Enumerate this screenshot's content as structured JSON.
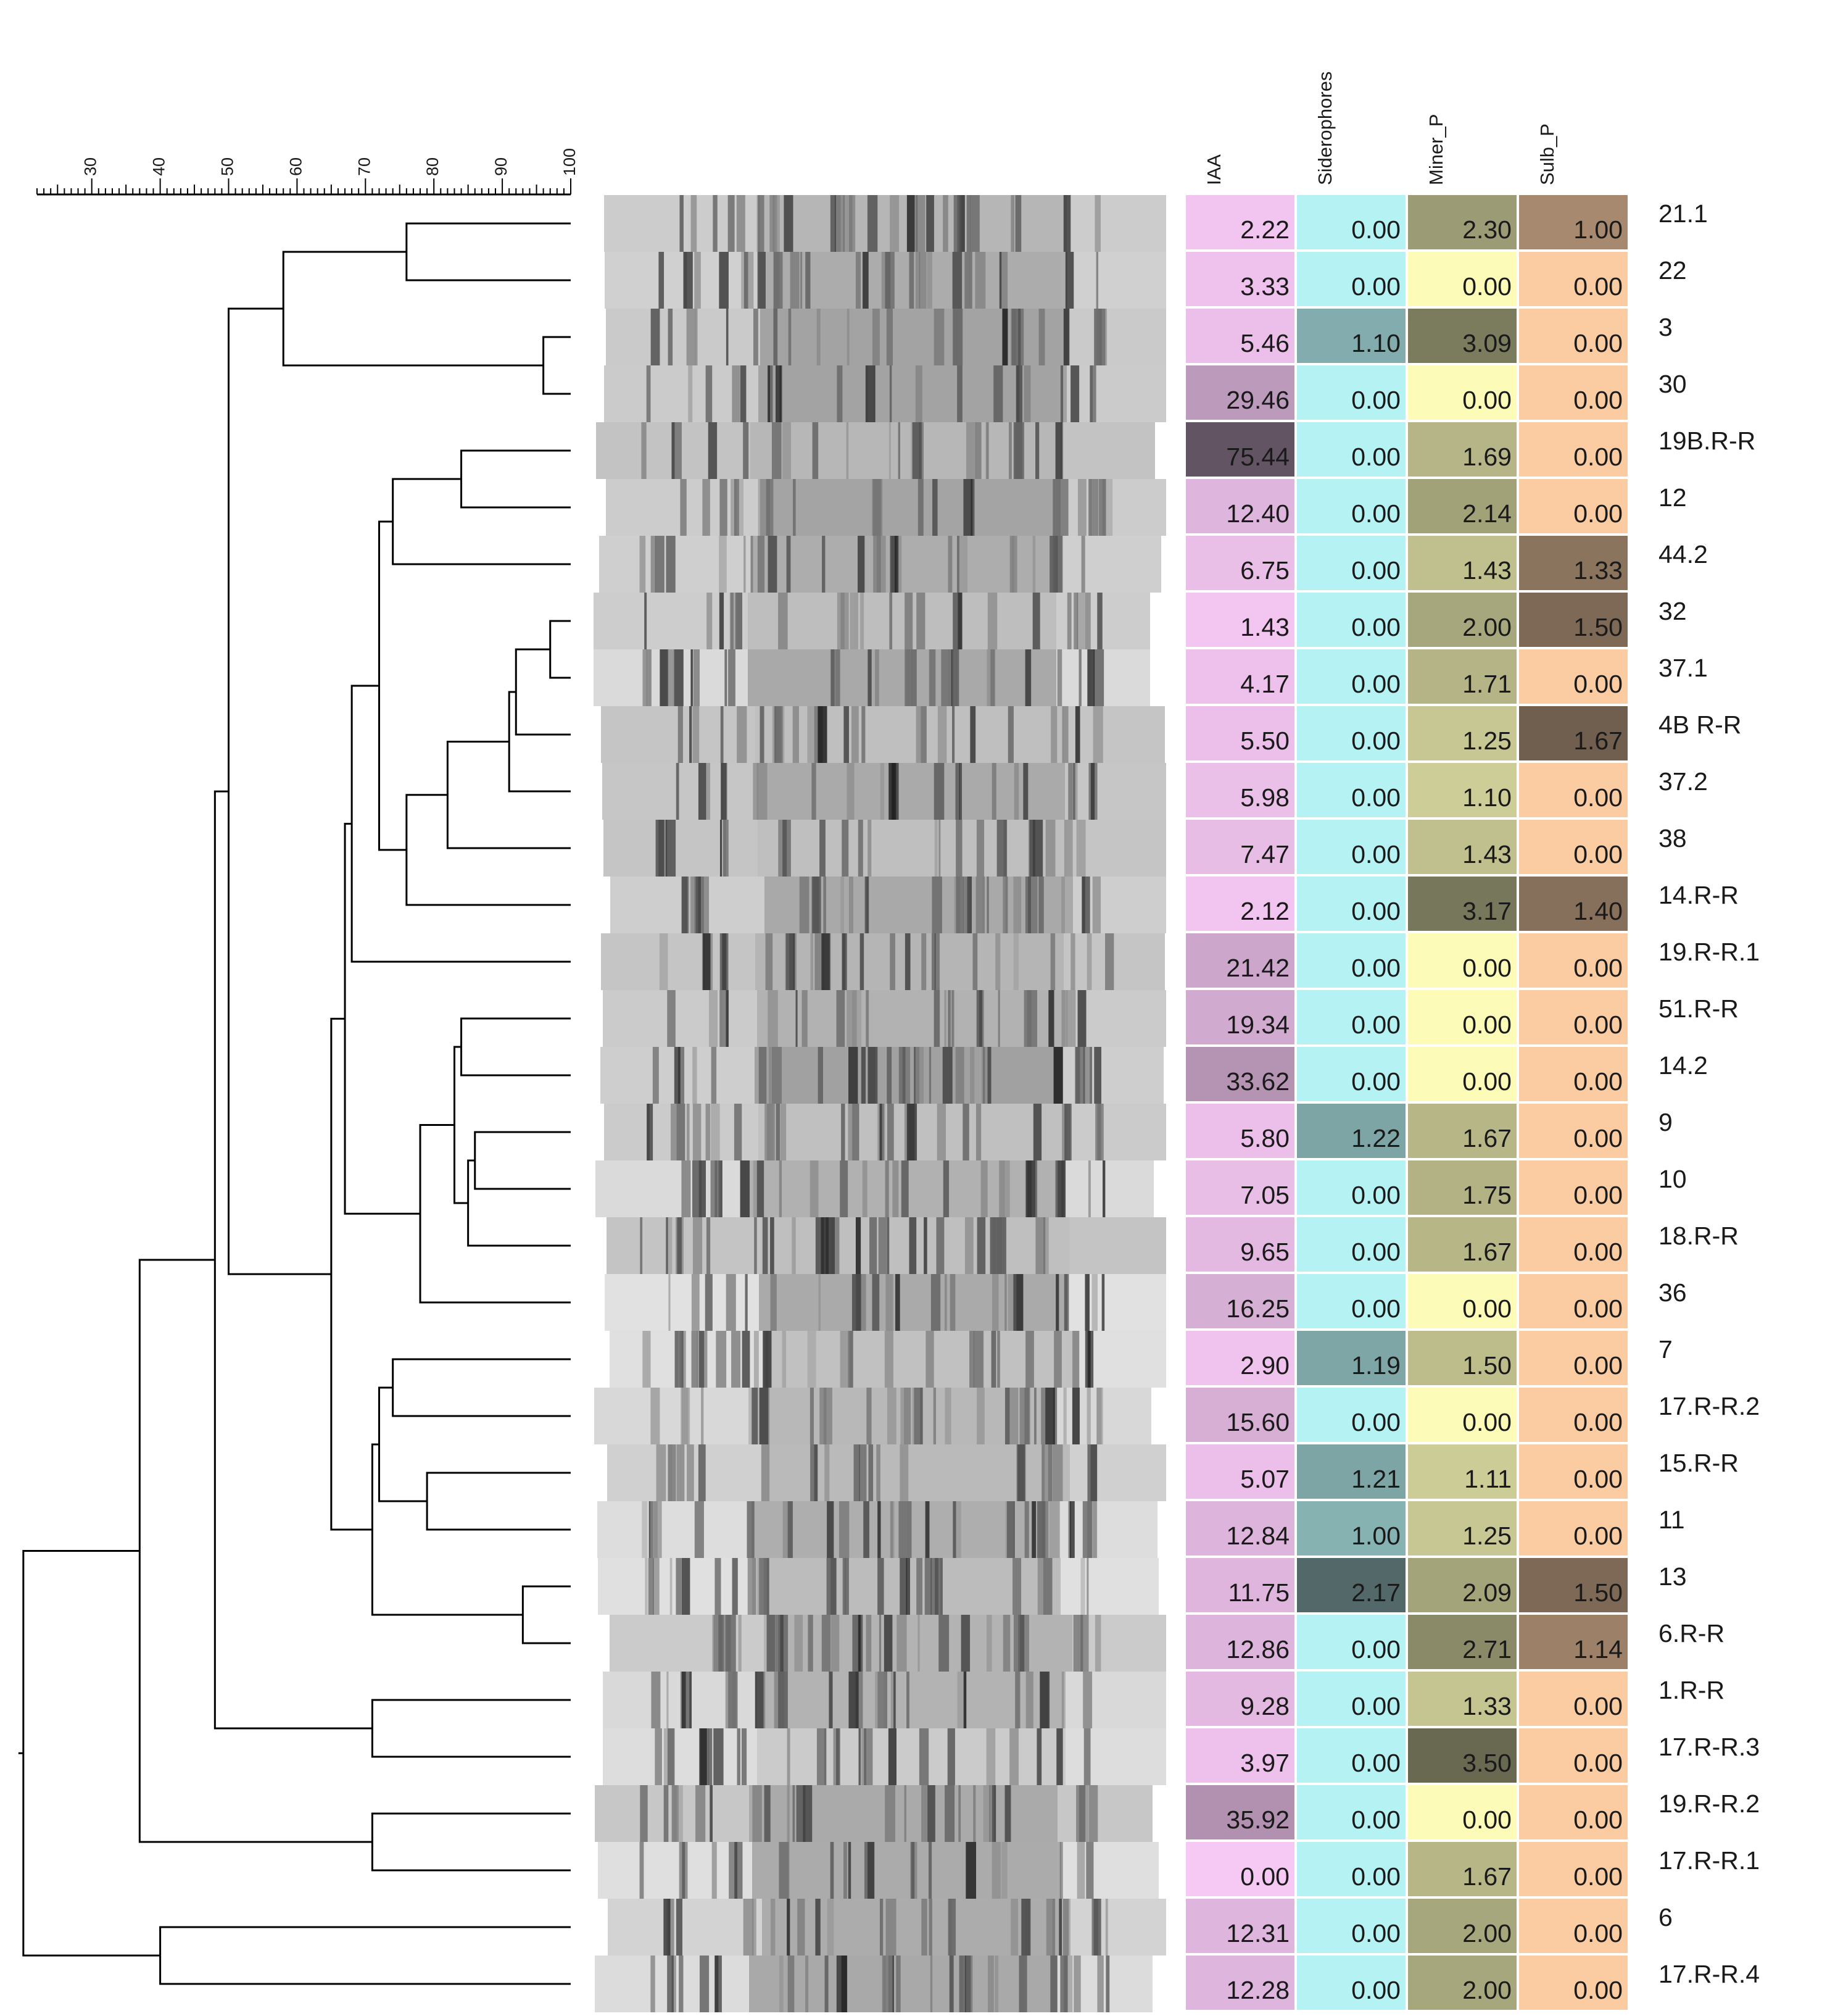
{
  "scale": {
    "ticks": [
      "30",
      "40",
      "50",
      "60",
      "70",
      "80",
      "90",
      "100"
    ],
    "min": 22,
    "max": 100
  },
  "column_headers": [
    "IAA",
    "Siderophores",
    "Miner_P",
    "Sulb_P"
  ],
  "colors": {
    "IAA": "#f6c8f4",
    "Siderophores": "#b4f2f3",
    "Miner_P": "#fcfcb8",
    "Sulb_P": "#fbcca1",
    "shade": "#1e1e1e",
    "line": "#000000",
    "text": "#1a1a1a"
  },
  "shade_max": {
    "IAA": 80,
    "Siderophores": 2.4,
    "Miner_P": 3.8,
    "Sulb_P": 1.9
  },
  "strains": [
    {
      "label": "21.1",
      "values": [
        "2.22",
        "0.00",
        "2.30",
        "1.00"
      ]
    },
    {
      "label": "22",
      "values": [
        "3.33",
        "0.00",
        "0.00",
        "0.00"
      ]
    },
    {
      "label": "3",
      "values": [
        "5.46",
        "1.10",
        "3.09",
        "0.00"
      ]
    },
    {
      "label": "30",
      "values": [
        "29.46",
        "0.00",
        "0.00",
        "0.00"
      ]
    },
    {
      "label": "19B.R-R",
      "values": [
        "75.44",
        "0.00",
        "1.69",
        "0.00"
      ]
    },
    {
      "label": "12",
      "values": [
        "12.40",
        "0.00",
        "2.14",
        "0.00"
      ]
    },
    {
      "label": "44.2",
      "values": [
        "6.75",
        "0.00",
        "1.43",
        "1.33"
      ]
    },
    {
      "label": "32",
      "values": [
        "1.43",
        "0.00",
        "2.00",
        "1.50"
      ]
    },
    {
      "label": "37.1",
      "values": [
        "4.17",
        "0.00",
        "1.71",
        "0.00"
      ]
    },
    {
      "label": "4B R-R",
      "values": [
        "5.50",
        "0.00",
        "1.25",
        "1.67"
      ]
    },
    {
      "label": "37.2",
      "values": [
        "5.98",
        "0.00",
        "1.10",
        "0.00"
      ]
    },
    {
      "label": "38",
      "values": [
        "7.47",
        "0.00",
        "1.43",
        "0.00"
      ]
    },
    {
      "label": "14.R-R",
      "values": [
        "2.12",
        "0.00",
        "3.17",
        "1.40"
      ]
    },
    {
      "label": "19.R-R.1",
      "values": [
        "21.42",
        "0.00",
        "0.00",
        "0.00"
      ]
    },
    {
      "label": "51.R-R",
      "values": [
        "19.34",
        "0.00",
        "0.00",
        "0.00"
      ]
    },
    {
      "label": "14.2",
      "values": [
        "33.62",
        "0.00",
        "0.00",
        "0.00"
      ]
    },
    {
      "label": "9",
      "values": [
        "5.80",
        "1.22",
        "1.67",
        "0.00"
      ]
    },
    {
      "label": "10",
      "values": [
        "7.05",
        "0.00",
        "1.75",
        "0.00"
      ]
    },
    {
      "label": "18.R-R",
      "values": [
        "9.65",
        "0.00",
        "1.67",
        "0.00"
      ]
    },
    {
      "label": "36",
      "values": [
        "16.25",
        "0.00",
        "0.00",
        "0.00"
      ]
    },
    {
      "label": "7",
      "values": [
        "2.90",
        "1.19",
        "1.50",
        "0.00"
      ]
    },
    {
      "label": "17.R-R.2",
      "values": [
        "15.60",
        "0.00",
        "0.00",
        "0.00"
      ]
    },
    {
      "label": "15.R-R",
      "values": [
        "5.07",
        "1.21",
        "1.11",
        "0.00"
      ]
    },
    {
      "label": "11",
      "values": [
        "12.84",
        "1.00",
        "1.25",
        "0.00"
      ]
    },
    {
      "label": "13",
      "values": [
        "11.75",
        "2.17",
        "2.09",
        "1.50"
      ]
    },
    {
      "label": "6.R-R",
      "values": [
        "12.86",
        "0.00",
        "2.71",
        "1.14"
      ]
    },
    {
      "label": "1.R-R",
      "values": [
        "9.28",
        "0.00",
        "1.33",
        "0.00"
      ]
    },
    {
      "label": "17.R-R.3",
      "values": [
        "3.97",
        "0.00",
        "3.50",
        "0.00"
      ]
    },
    {
      "label": "19.R-R.2",
      "values": [
        "35.92",
        "0.00",
        "0.00",
        "0.00"
      ]
    },
    {
      "label": "17.R-R.1",
      "values": [
        "0.00",
        "0.00",
        "1.67",
        "0.00"
      ]
    },
    {
      "label": "6",
      "values": [
        "12.31",
        "0.00",
        "2.00",
        "0.00"
      ]
    },
    {
      "label": "17.R-R.4",
      "values": [
        "12.28",
        "0.00",
        "2.00",
        "0.00"
      ]
    }
  ],
  "dendrogram": {
    "merges": [
      [
        0,
        1,
        76
      ],
      [
        2,
        3,
        96
      ],
      [
        -1,
        -2,
        58
      ],
      [
        7,
        8,
        97
      ],
      [
        -4,
        9,
        92
      ],
      [
        -5,
        10,
        91
      ],
      [
        -6,
        11,
        82
      ],
      [
        -7,
        12,
        76
      ],
      [
        4,
        5,
        84
      ],
      [
        -9,
        6,
        74
      ],
      [
        -10,
        -8,
        72
      ],
      [
        -11,
        13,
        68
      ],
      [
        14,
        15,
        84
      ],
      [
        16,
        17,
        86
      ],
      [
        -14,
        18,
        85
      ],
      [
        -13,
        -15,
        83
      ],
      [
        -16,
        19,
        78
      ],
      [
        -12,
        -17,
        67
      ],
      [
        20,
        21,
        74
      ],
      [
        22,
        23,
        79
      ],
      [
        -19,
        -20,
        72
      ],
      [
        24,
        25,
        93
      ],
      [
        -21,
        -22,
        71
      ],
      [
        -18,
        -23,
        65
      ],
      [
        -3,
        -24,
        50
      ],
      [
        26,
        27,
        71
      ],
      [
        -25,
        -26,
        48
      ],
      [
        28,
        29,
        71
      ],
      [
        -27,
        -28,
        37
      ],
      [
        30,
        31,
        40
      ],
      [
        -29,
        -30,
        20
      ]
    ]
  }
}
